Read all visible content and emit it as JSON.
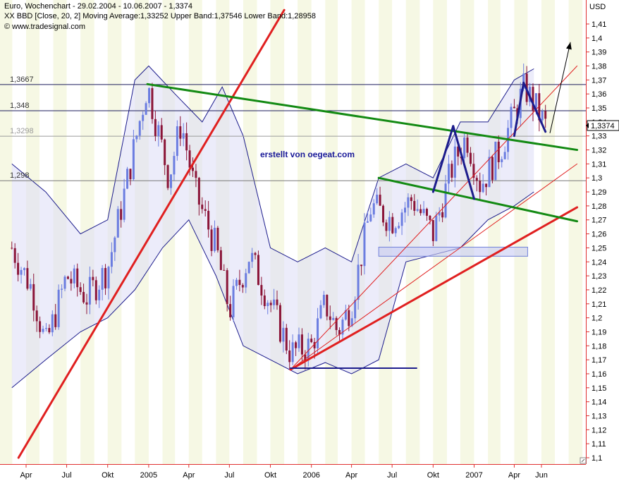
{
  "header": {
    "line1": "Euro, Wochenchart - 29.02.2004 - 10.06.2007 - 1,3374",
    "line2": "XX BBD [Close, 20, 2] Moving Average:1,33252 Upper Band:1,37546 Lower Band:1,28958",
    "line3": "© www.tradesignal.com"
  },
  "annotation": "erstellt von oegeat.com",
  "colors": {
    "bullish": "#6b7de0",
    "bearish": "#8b1538",
    "band": "#1c1c8c",
    "band_fill": "#dcdcf6",
    "trend_red": "#e02020",
    "trend_green": "#138a13",
    "pattern_blue": "#1c1c8c",
    "axis_red": "#e03030",
    "stripe": "#f6f8e4"
  },
  "chart_data": {
    "type": "candlestick",
    "title": "Euro, Wochenchart - 29.02.2004 - 10.06.2007 - 1,3374",
    "ylabel": "USD",
    "ylim": [
      1.1,
      1.42
    ],
    "last_value": "1,3374",
    "y_ticks": [
      "1,1",
      "1,11",
      "1,12",
      "1,13",
      "1,14",
      "1,15",
      "1,16",
      "1,17",
      "1,18",
      "1,19",
      "1,2",
      "1,21",
      "1,22",
      "1,23",
      "1,24",
      "1,25",
      "1,26",
      "1,27",
      "1,28",
      "1,29",
      "1,3",
      "1,31",
      "1,32",
      "1,33",
      "1,34",
      "1,35",
      "1,36",
      "1,37",
      "1,38",
      "1,39",
      "1,4",
      "1,41"
    ],
    "x_ticks": [
      {
        "label": "Apr",
        "date": "2004-04-01"
      },
      {
        "label": "Jul",
        "date": "2004-07-01"
      },
      {
        "label": "Okt",
        "date": "2004-10-01"
      },
      {
        "label": "2005",
        "date": "2005-01-01"
      },
      {
        "label": "Apr",
        "date": "2005-04-01"
      },
      {
        "label": "Jul",
        "date": "2005-07-01"
      },
      {
        "label": "Okt",
        "date": "2005-10-01"
      },
      {
        "label": "2006",
        "date": "2006-01-01"
      },
      {
        "label": "Apr",
        "date": "2006-04-01"
      },
      {
        "label": "Jul",
        "date": "2006-07-01"
      },
      {
        "label": "Okt",
        "date": "2006-10-01"
      },
      {
        "label": "2007",
        "date": "2007-01-01"
      },
      {
        "label": "Apr",
        "date": "2007-04-01"
      },
      {
        "label": "Jun",
        "date": "2007-06-01"
      }
    ],
    "levels": [
      {
        "label": "1,3667",
        "value": 1.3667
      },
      {
        "label": "1,348",
        "value": 1.348
      },
      {
        "label": "1,3298",
        "value": 1.3298
      },
      {
        "label": "1,298",
        "value": 1.298
      }
    ],
    "path_points": [
      {
        "date": "2004-02-29",
        "close": 1.25
      },
      {
        "date": "2004-04-15",
        "close": 1.22
      },
      {
        "date": "2004-05-15",
        "close": 1.18
      },
      {
        "date": "2004-07-01",
        "close": 1.23
      },
      {
        "date": "2004-08-15",
        "close": 1.215
      },
      {
        "date": "2004-10-01",
        "close": 1.235
      },
      {
        "date": "2004-11-15",
        "close": 1.3
      },
      {
        "date": "2004-12-29",
        "close": 1.3667
      },
      {
        "date": "2005-02-15",
        "close": 1.3
      },
      {
        "date": "2005-03-15",
        "close": 1.34
      },
      {
        "date": "2005-04-15",
        "close": 1.29
      },
      {
        "date": "2005-06-01",
        "close": 1.25
      },
      {
        "date": "2005-07-01",
        "close": 1.205
      },
      {
        "date": "2005-08-15",
        "close": 1.245
      },
      {
        "date": "2005-10-01",
        "close": 1.21
      },
      {
        "date": "2005-11-15",
        "close": 1.175
      },
      {
        "date": "2006-01-01",
        "close": 1.18
      },
      {
        "date": "2006-02-01",
        "close": 1.21
      },
      {
        "date": "2006-03-01",
        "close": 1.19
      },
      {
        "date": "2006-04-01",
        "close": 1.21
      },
      {
        "date": "2006-05-15",
        "close": 1.28
      },
      {
        "date": "2006-07-01",
        "close": 1.27
      },
      {
        "date": "2006-08-15",
        "close": 1.285
      },
      {
        "date": "2006-10-01",
        "close": 1.26
      },
      {
        "date": "2006-11-15",
        "close": 1.31
      },
      {
        "date": "2006-12-15",
        "close": 1.33
      },
      {
        "date": "2007-01-15",
        "close": 1.295
      },
      {
        "date": "2007-03-01",
        "close": 1.32
      },
      {
        "date": "2007-04-24",
        "close": 1.365
      },
      {
        "date": "2007-06-10",
        "close": 1.3374
      }
    ],
    "upper_band": [
      {
        "date": "2004-02-29",
        "value": 1.31
      },
      {
        "date": "2004-05-15",
        "value": 1.29
      },
      {
        "date": "2004-08-01",
        "value": 1.26
      },
      {
        "date": "2004-10-01",
        "value": 1.27
      },
      {
        "date": "2004-12-01",
        "value": 1.37
      },
      {
        "date": "2005-01-01",
        "value": 1.38
      },
      {
        "date": "2005-03-01",
        "value": 1.36
      },
      {
        "date": "2005-05-01",
        "value": 1.34
      },
      {
        "date": "2005-06-15",
        "value": 1.365
      },
      {
        "date": "2005-08-01",
        "value": 1.33
      },
      {
        "date": "2005-10-01",
        "value": 1.25
      },
      {
        "date": "2005-12-01",
        "value": 1.24
      },
      {
        "date": "2006-02-01",
        "value": 1.25
      },
      {
        "date": "2006-04-01",
        "value": 1.24
      },
      {
        "date": "2006-06-01",
        "value": 1.3
      },
      {
        "date": "2006-08-01",
        "value": 1.31
      },
      {
        "date": "2006-10-01",
        "value": 1.3
      },
      {
        "date": "2006-12-01",
        "value": 1.34
      },
      {
        "date": "2007-02-01",
        "value": 1.34
      },
      {
        "date": "2007-04-01",
        "value": 1.37
      },
      {
        "date": "2007-05-15",
        "value": 1.378
      }
    ],
    "lower_band": [
      {
        "date": "2004-02-29",
        "value": 1.15
      },
      {
        "date": "2004-05-15",
        "value": 1.17
      },
      {
        "date": "2004-08-01",
        "value": 1.19
      },
      {
        "date": "2004-10-01",
        "value": 1.2
      },
      {
        "date": "2004-12-01",
        "value": 1.22
      },
      {
        "date": "2005-02-01",
        "value": 1.25
      },
      {
        "date": "2005-04-01",
        "value": 1.27
      },
      {
        "date": "2005-06-01",
        "value": 1.23
      },
      {
        "date": "2005-08-01",
        "value": 1.18
      },
      {
        "date": "2005-10-01",
        "value": 1.17
      },
      {
        "date": "2005-12-01",
        "value": 1.16
      },
      {
        "date": "2006-02-01",
        "value": 1.168
      },
      {
        "date": "2006-04-01",
        "value": 1.16
      },
      {
        "date": "2006-06-01",
        "value": 1.17
      },
      {
        "date": "2006-08-01",
        "value": 1.24
      },
      {
        "date": "2006-10-01",
        "value": 1.245
      },
      {
        "date": "2006-12-01",
        "value": 1.25
      },
      {
        "date": "2007-02-01",
        "value": 1.27
      },
      {
        "date": "2007-04-01",
        "value": 1.28
      },
      {
        "date": "2007-05-15",
        "value": 1.29
      }
    ],
    "trendlines": [
      {
        "color_key": "trend_red",
        "width": 3,
        "from": {
          "date": "2004-03-15",
          "value": 1.1
        },
        "to": {
          "date": "2005-11-01",
          "value": 1.42
        }
      },
      {
        "color_key": "trend_red",
        "width": 3,
        "from": {
          "date": "2005-11-15",
          "value": 1.163
        },
        "to": {
          "date": "2007-08-20",
          "value": 1.279
        }
      },
      {
        "color_key": "trend_red",
        "width": 1,
        "from": {
          "date": "2005-11-15",
          "value": 1.163
        },
        "to": {
          "date": "2007-08-20",
          "value": 1.31
        }
      },
      {
        "color_key": "trend_red",
        "width": 1,
        "from": {
          "date": "2005-11-15",
          "value": 1.163
        },
        "to": {
          "date": "2007-08-20",
          "value": 1.38
        }
      },
      {
        "color_key": "trend_green",
        "width": 3,
        "from": {
          "date": "2004-12-29",
          "value": 1.367
        },
        "to": {
          "date": "2007-08-20",
          "value": 1.32
        }
      },
      {
        "color_key": "trend_green",
        "width": 3,
        "from": {
          "date": "2006-06-01",
          "value": 1.3
        },
        "to": {
          "date": "2007-08-20",
          "value": 1.269
        }
      },
      {
        "color_key": "pattern_blue",
        "width": 3,
        "from": {
          "date": "2006-10-01",
          "value": 1.29
        },
        "to": {
          "date": "2006-11-15",
          "value": 1.337
        }
      },
      {
        "color_key": "pattern_blue",
        "width": 3,
        "from": {
          "date": "2006-11-15",
          "value": 1.337
        },
        "to": {
          "date": "2007-01-01",
          "value": 1.285
        }
      },
      {
        "color_key": "pattern_blue",
        "width": 3,
        "from": {
          "date": "2007-04-01",
          "value": 1.33
        },
        "to": {
          "date": "2007-04-22",
          "value": 1.368
        }
      },
      {
        "color_key": "pattern_blue",
        "width": 3,
        "from": {
          "date": "2007-04-22",
          "value": 1.368
        },
        "to": {
          "date": "2007-06-10",
          "value": 1.333
        }
      },
      {
        "color_key": "band",
        "width": 2,
        "from": {
          "date": "2005-11-15",
          "value": 1.164
        },
        "to": {
          "date": "2006-08-25",
          "value": 1.164
        }
      }
    ],
    "support_box": {
      "from_date": "2006-06-01",
      "to_date": "2007-05-01",
      "low": 1.245,
      "high": 1.25
    },
    "arrow": {
      "from": {
        "date": "2007-06-20",
        "value": 1.332
      },
      "to": {
        "date": "2007-08-05",
        "value": 1.397
      }
    }
  }
}
